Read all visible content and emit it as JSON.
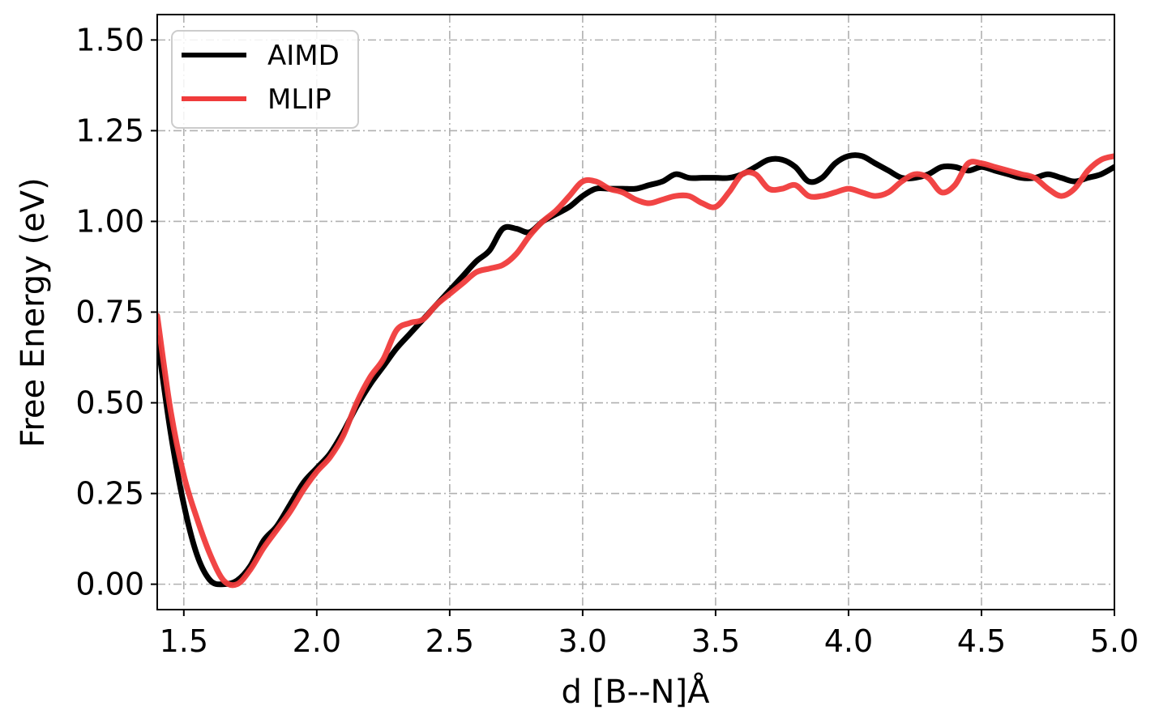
{
  "chart_data": {
    "type": "line",
    "title": "",
    "xlabel": "d [B--N]Å",
    "ylabel": "Free Energy (eV)",
    "xlim": [
      1.4,
      5.0
    ],
    "ylim": [
      -0.07,
      1.57
    ],
    "grid": true,
    "legend_position": "top-left",
    "x_ticks": [
      1.5,
      2.0,
      2.5,
      3.0,
      3.5,
      4.0,
      4.5,
      5.0
    ],
    "x_tick_labels": [
      "1.5",
      "2.0",
      "2.5",
      "3.0",
      "3.5",
      "4.0",
      "4.5",
      "5.0"
    ],
    "y_ticks": [
      0.0,
      0.25,
      0.5,
      0.75,
      1.0,
      1.25,
      1.5
    ],
    "y_tick_labels": [
      "0.00",
      "0.25",
      "0.50",
      "0.75",
      "1.00",
      "1.25",
      "1.50"
    ],
    "series": [
      {
        "name": "AIMD",
        "color": "#000000",
        "points": [
          [
            1.4,
            0.68
          ],
          [
            1.45,
            0.42
          ],
          [
            1.5,
            0.22
          ],
          [
            1.55,
            0.08
          ],
          [
            1.6,
            0.01
          ],
          [
            1.65,
            0.0
          ],
          [
            1.7,
            0.01
          ],
          [
            1.75,
            0.05
          ],
          [
            1.8,
            0.12
          ],
          [
            1.85,
            0.16
          ],
          [
            1.9,
            0.22
          ],
          [
            1.95,
            0.28
          ],
          [
            2.0,
            0.32
          ],
          [
            2.05,
            0.36
          ],
          [
            2.1,
            0.42
          ],
          [
            2.15,
            0.49
          ],
          [
            2.2,
            0.55
          ],
          [
            2.25,
            0.6
          ],
          [
            2.3,
            0.65
          ],
          [
            2.35,
            0.69
          ],
          [
            2.4,
            0.73
          ],
          [
            2.45,
            0.77
          ],
          [
            2.5,
            0.81
          ],
          [
            2.55,
            0.85
          ],
          [
            2.6,
            0.89
          ],
          [
            2.65,
            0.92
          ],
          [
            2.7,
            0.98
          ],
          [
            2.75,
            0.98
          ],
          [
            2.8,
            0.97
          ],
          [
            2.85,
            1.0
          ],
          [
            2.9,
            1.02
          ],
          [
            2.95,
            1.04
          ],
          [
            3.0,
            1.07
          ],
          [
            3.05,
            1.09
          ],
          [
            3.1,
            1.09
          ],
          [
            3.15,
            1.09
          ],
          [
            3.2,
            1.09
          ],
          [
            3.25,
            1.1
          ],
          [
            3.3,
            1.11
          ],
          [
            3.35,
            1.13
          ],
          [
            3.4,
            1.12
          ],
          [
            3.45,
            1.12
          ],
          [
            3.5,
            1.12
          ],
          [
            3.55,
            1.12
          ],
          [
            3.6,
            1.13
          ],
          [
            3.65,
            1.15
          ],
          [
            3.7,
            1.17
          ],
          [
            3.75,
            1.17
          ],
          [
            3.8,
            1.15
          ],
          [
            3.85,
            1.11
          ],
          [
            3.9,
            1.12
          ],
          [
            3.95,
            1.16
          ],
          [
            4.0,
            1.18
          ],
          [
            4.05,
            1.18
          ],
          [
            4.1,
            1.16
          ],
          [
            4.15,
            1.14
          ],
          [
            4.2,
            1.12
          ],
          [
            4.25,
            1.12
          ],
          [
            4.3,
            1.13
          ],
          [
            4.35,
            1.15
          ],
          [
            4.4,
            1.15
          ],
          [
            4.45,
            1.14
          ],
          [
            4.5,
            1.15
          ],
          [
            4.55,
            1.14
          ],
          [
            4.6,
            1.13
          ],
          [
            4.65,
            1.12
          ],
          [
            4.7,
            1.12
          ],
          [
            4.75,
            1.13
          ],
          [
            4.8,
            1.12
          ],
          [
            4.85,
            1.11
          ],
          [
            4.9,
            1.12
          ],
          [
            4.95,
            1.13
          ],
          [
            5.0,
            1.15
          ]
        ]
      },
      {
        "name": "MLIP",
        "color": "#f03b3b",
        "points": [
          [
            1.4,
            0.74
          ],
          [
            1.45,
            0.48
          ],
          [
            1.5,
            0.3
          ],
          [
            1.55,
            0.18
          ],
          [
            1.6,
            0.08
          ],
          [
            1.65,
            0.01
          ],
          [
            1.7,
            0.0
          ],
          [
            1.75,
            0.04
          ],
          [
            1.8,
            0.1
          ],
          [
            1.85,
            0.15
          ],
          [
            1.9,
            0.2
          ],
          [
            1.95,
            0.26
          ],
          [
            2.0,
            0.31
          ],
          [
            2.05,
            0.35
          ],
          [
            2.1,
            0.41
          ],
          [
            2.15,
            0.5
          ],
          [
            2.2,
            0.57
          ],
          [
            2.25,
            0.62
          ],
          [
            2.3,
            0.7
          ],
          [
            2.35,
            0.72
          ],
          [
            2.4,
            0.73
          ],
          [
            2.45,
            0.77
          ],
          [
            2.5,
            0.8
          ],
          [
            2.55,
            0.83
          ],
          [
            2.6,
            0.86
          ],
          [
            2.65,
            0.87
          ],
          [
            2.7,
            0.88
          ],
          [
            2.75,
            0.91
          ],
          [
            2.8,
            0.96
          ],
          [
            2.85,
            1.0
          ],
          [
            2.9,
            1.03
          ],
          [
            2.95,
            1.07
          ],
          [
            3.0,
            1.11
          ],
          [
            3.05,
            1.11
          ],
          [
            3.1,
            1.09
          ],
          [
            3.15,
            1.08
          ],
          [
            3.2,
            1.06
          ],
          [
            3.25,
            1.05
          ],
          [
            3.3,
            1.06
          ],
          [
            3.35,
            1.07
          ],
          [
            3.4,
            1.07
          ],
          [
            3.45,
            1.05
          ],
          [
            3.5,
            1.04
          ],
          [
            3.55,
            1.08
          ],
          [
            3.6,
            1.13
          ],
          [
            3.65,
            1.13
          ],
          [
            3.7,
            1.09
          ],
          [
            3.75,
            1.09
          ],
          [
            3.8,
            1.1
          ],
          [
            3.85,
            1.07
          ],
          [
            3.9,
            1.07
          ],
          [
            3.95,
            1.08
          ],
          [
            4.0,
            1.09
          ],
          [
            4.05,
            1.08
          ],
          [
            4.1,
            1.07
          ],
          [
            4.15,
            1.08
          ],
          [
            4.2,
            1.11
          ],
          [
            4.25,
            1.13
          ],
          [
            4.3,
            1.12
          ],
          [
            4.35,
            1.08
          ],
          [
            4.4,
            1.1
          ],
          [
            4.45,
            1.16
          ],
          [
            4.5,
            1.16
          ],
          [
            4.55,
            1.15
          ],
          [
            4.6,
            1.14
          ],
          [
            4.65,
            1.13
          ],
          [
            4.7,
            1.12
          ],
          [
            4.75,
            1.09
          ],
          [
            4.8,
            1.07
          ],
          [
            4.85,
            1.09
          ],
          [
            4.9,
            1.14
          ],
          [
            4.95,
            1.17
          ],
          [
            5.0,
            1.18
          ]
        ]
      }
    ]
  }
}
